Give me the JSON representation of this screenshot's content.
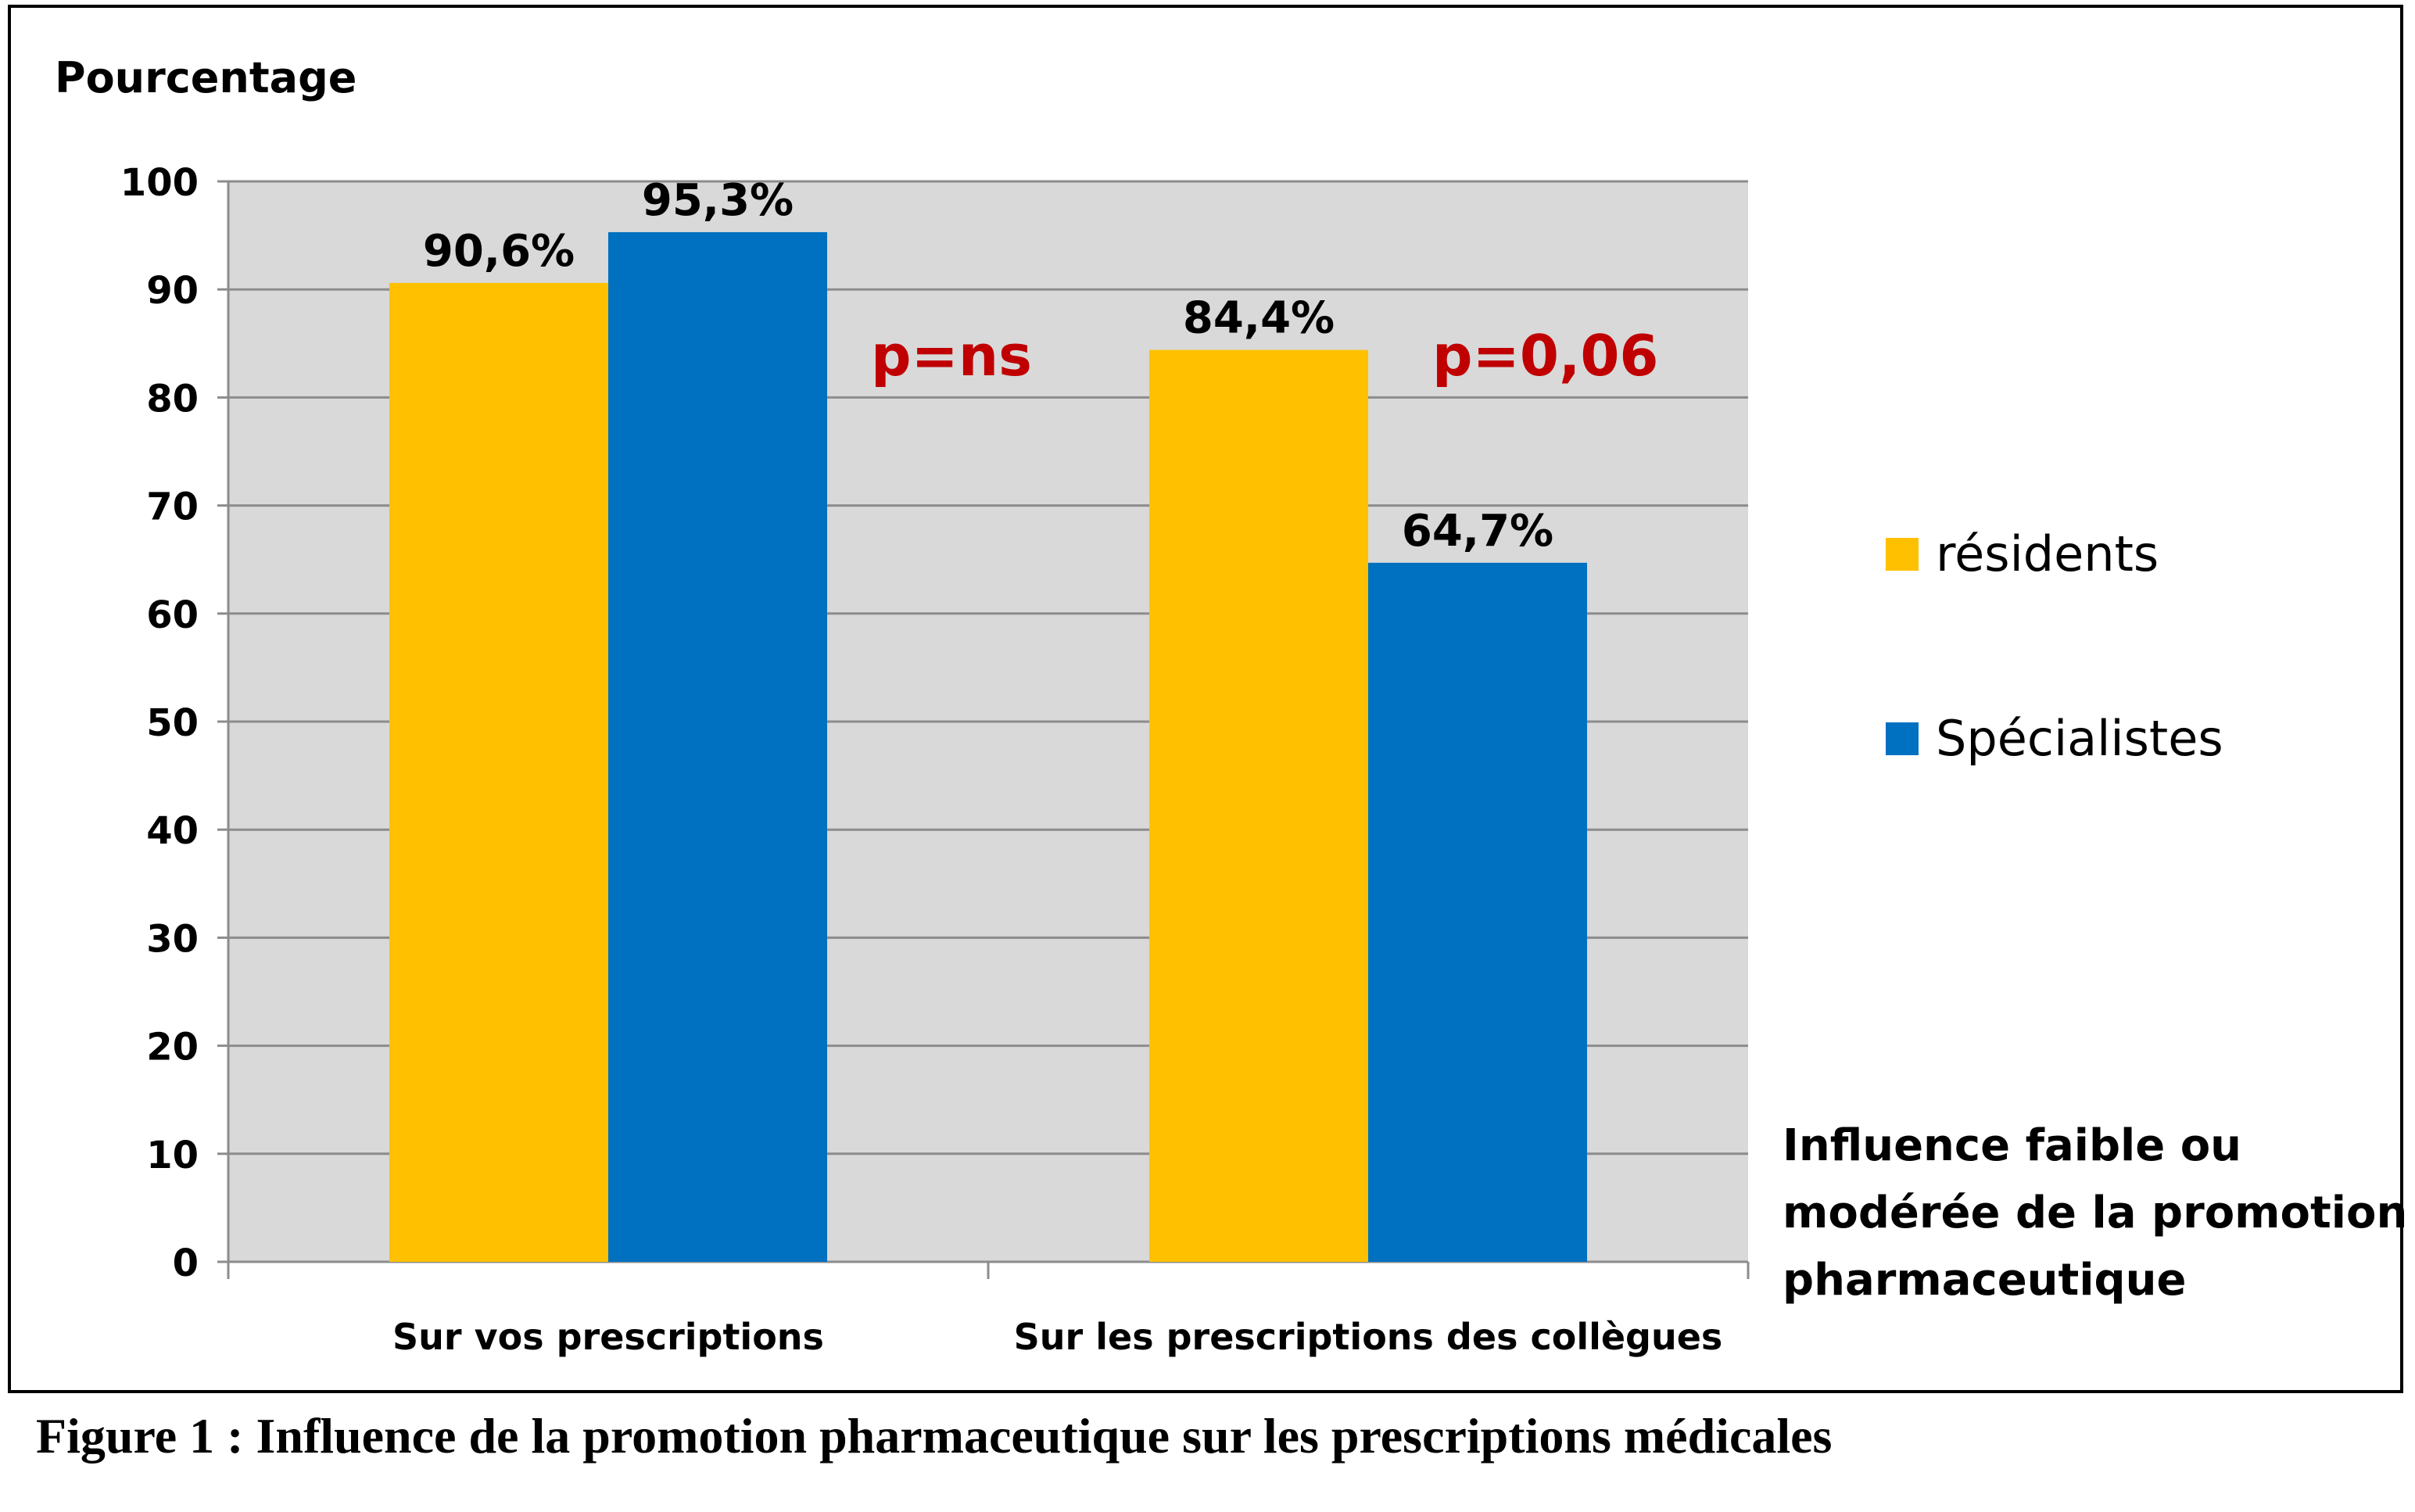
{
  "figure_caption": "Figure 1 : Influence de la promotion pharmaceutique sur les prescriptions médicales",
  "colors": {
    "residents": "#FFC000",
    "specialistes": "#0070C0",
    "plot_bg": "#D9D9D9",
    "annotation": "#C00000"
  },
  "chart_data": {
    "type": "bar",
    "ylabel": "Pourcentage",
    "xlabel": "Influence faible ou modérée de la promotion pharmaceutique",
    "xlabel_lines": [
      "Influence faible ou",
      "modérée de la promotion",
      "pharmaceutique"
    ],
    "ylim": [
      0,
      100
    ],
    "yticks": [
      0,
      10,
      20,
      30,
      40,
      50,
      60,
      70,
      80,
      90,
      100
    ],
    "grid": true,
    "legend": "right",
    "categories": [
      "Sur vos prescriptions",
      "Sur les prescriptions des collègues"
    ],
    "series": [
      {
        "name": "résidents",
        "values": [
          90.6,
          84.4
        ],
        "labels": [
          "90,6%",
          "84,4%"
        ]
      },
      {
        "name": "Spécialistes",
        "values": [
          95.3,
          64.7
        ],
        "labels": [
          "95,3%",
          "64,7%"
        ]
      }
    ],
    "annotations": [
      "p=ns",
      "p=0,06"
    ]
  }
}
